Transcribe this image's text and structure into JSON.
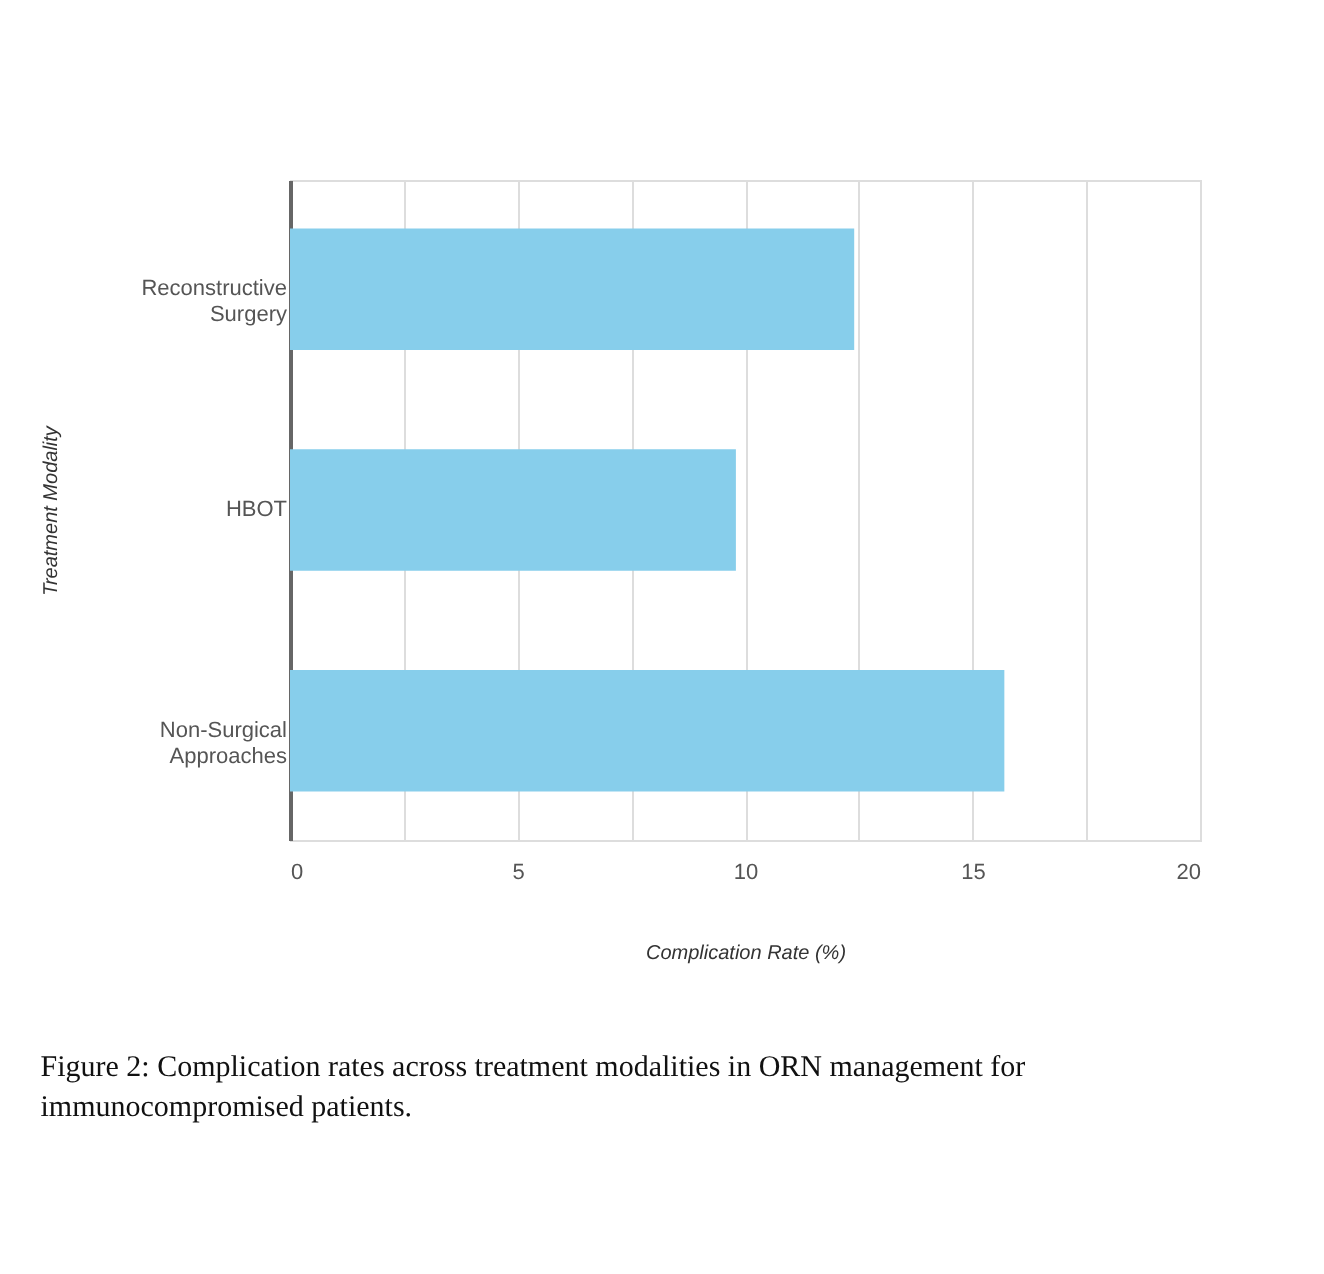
{
  "chart_data": {
    "type": "bar",
    "orientation": "horizontal",
    "categories": [
      "Reconstructive Surgery",
      "HBOT",
      "Non-Surgical Approaches"
    ],
    "values": [
      12.4,
      9.8,
      15.7
    ],
    "color": "#87ceeb",
    "xlabel": "Complication Rate (%)",
    "ylabel": "Treatment Modality",
    "xlim": [
      0,
      20
    ],
    "xticks": [
      0,
      {
        "value": 2.5,
        "label": null
      },
      5,
      {
        "value": 7.5,
        "label": null
      },
      10,
      {
        "value": 12.5,
        "label": null
      },
      15,
      {
        "value": 17.5,
        "label": null
      },
      20
    ],
    "grid": "x",
    "annotations": [
      "Figure 2: Complication rates across treatment modalities in ORN management for immunocompromised patients."
    ]
  }
}
